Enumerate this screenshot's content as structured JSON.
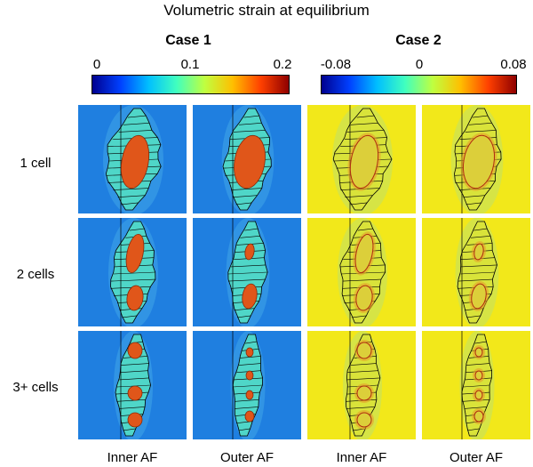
{
  "title": "Volumetric strain at equilibrium",
  "cases": [
    {
      "name": "Case 1",
      "colorbar": {
        "ticks": [
          "0",
          "0.1",
          "0.2"
        ],
        "tick_values": [
          0,
          0.1,
          0.2
        ],
        "range": [
          0,
          0.2
        ]
      }
    },
    {
      "name": "Case 2",
      "colorbar": {
        "ticks": [
          "-0.08",
          "0",
          "0.08"
        ],
        "tick_values": [
          -0.08,
          0,
          0.08
        ],
        "range": [
          -0.08,
          0.08
        ]
      }
    }
  ],
  "rows": [
    {
      "label": "1 cell",
      "cells": 1
    },
    {
      "label": "2 cells",
      "cells": 2
    },
    {
      "label": "3+ cells",
      "cells": 3
    }
  ],
  "columns": [
    {
      "label": "Inner AF",
      "case": 0
    },
    {
      "label": "Outer AF",
      "case": 0
    },
    {
      "label": "Inner AF",
      "case": 1
    },
    {
      "label": "Outer AF",
      "case": 1
    }
  ],
  "colors": {
    "case1_background": "#1f7fe0",
    "case2_background": "#f2e81a",
    "case1_tissue": "#4fd6c8",
    "case2_tissue": "#d9e33a",
    "cell": "#e0561a",
    "lines": "#000000"
  }
}
